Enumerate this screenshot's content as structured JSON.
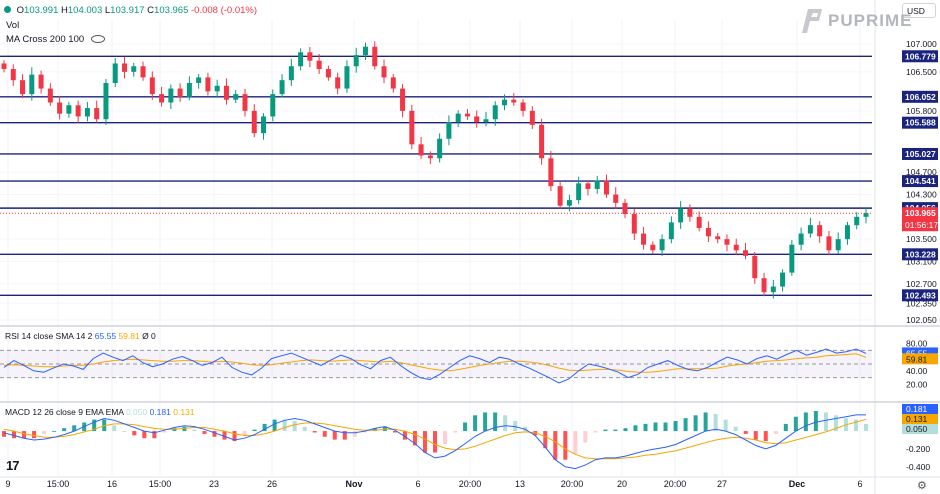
{
  "header": {
    "ohlc": {
      "o_label": "O",
      "o_value": "103.991",
      "h_label": "H",
      "h_value": "104.003",
      "l_label": "L",
      "l_value": "103.917",
      "c_label": "C",
      "c_value": "103.965",
      "change": "-0.008 (-0.01%)"
    },
    "vol_label": "Vol",
    "ma_label": "MA Cross 200 100"
  },
  "currency": "USD",
  "brand": "PUPRIME",
  "watermark": "17",
  "colors": {
    "up": "#089981",
    "down": "#f23645",
    "hline": "#1a237e",
    "rsi": "#2962ff",
    "rsi_ma": "#f7a600",
    "macd": "#2962ff",
    "signal": "#f7a600"
  },
  "chart_data": [
    {
      "type": "candlestick",
      "price_axis_ticks": [
        "107.000",
        "106.500",
        "105.800",
        "104.700",
        "104.300",
        "103.500",
        "103.100",
        "102.700",
        "102.350",
        "102.050"
      ],
      "x_tick_labels": [
        "9",
        "15:00",
        "16",
        "15:00",
        "23",
        "26",
        "Nov",
        "6",
        "20:00",
        "13",
        "20:00",
        "20",
        "20:00",
        "27",
        "Dec",
        "6"
      ],
      "horizontal_levels": [
        "106.779",
        "106.052",
        "105.588",
        "105.027",
        "104.541",
        "104.056",
        "103.228",
        "102.493"
      ],
      "current_price": "103.965",
      "countdown": "01:56:17",
      "last": {
        "open": 103.991,
        "high": 104.003,
        "low": 103.917,
        "close": 103.965
      },
      "close_path": [
        106.55,
        106.35,
        106.1,
        106.45,
        106.2,
        105.95,
        105.75,
        105.9,
        105.7,
        105.85,
        105.65,
        106.3,
        106.65,
        106.5,
        106.6,
        106.4,
        106.1,
        105.95,
        106.2,
        106.05,
        106.3,
        106.4,
        106.15,
        106.25,
        106.0,
        106.1,
        105.8,
        105.4,
        105.7,
        106.1,
        106.35,
        106.6,
        106.85,
        106.7,
        106.55,
        106.4,
        106.2,
        106.6,
        106.8,
        106.95,
        106.6,
        106.4,
        106.2,
        105.8,
        105.2,
        105.0,
        104.95,
        105.3,
        105.6,
        105.75,
        105.7,
        105.6,
        105.65,
        105.9,
        106.0,
        105.95,
        105.8,
        105.55,
        104.95,
        104.45,
        104.1,
        104.2,
        104.5,
        104.4,
        104.55,
        104.3,
        104.15,
        103.95,
        103.6,
        103.4,
        103.3,
        103.5,
        103.8,
        104.05,
        103.9,
        103.7,
        103.55,
        103.5,
        103.4,
        103.3,
        103.2,
        102.8,
        102.55,
        102.65,
        102.9,
        103.4,
        103.6,
        103.75,
        103.55,
        103.3,
        103.5,
        103.75,
        103.9,
        103.965
      ]
    },
    {
      "type": "line",
      "name": "RSI 14 close SMA 14 2",
      "values_text": [
        "65.55",
        "59.81",
        "0"
      ],
      "axis_ticks": [
        "80.00",
        "60.00",
        "40.00",
        "20.00"
      ],
      "ylim": [
        0,
        100
      ],
      "series": [
        {
          "name": "RSI",
          "values": [
            45,
            55,
            48,
            40,
            38,
            44,
            50,
            47,
            42,
            58,
            66,
            60,
            55,
            62,
            52,
            46,
            50,
            57,
            61,
            55,
            48,
            52,
            60,
            45,
            38,
            34,
            44,
            58,
            62,
            66,
            60,
            54,
            48,
            56,
            63,
            58,
            49,
            43,
            55,
            60,
            48,
            38,
            30,
            27,
            35,
            45,
            55,
            62,
            58,
            52,
            60,
            57,
            50,
            44,
            37,
            30,
            22,
            28,
            40,
            50,
            47,
            43,
            38,
            30,
            35,
            45,
            50,
            55,
            48,
            42,
            40,
            45,
            53,
            60,
            56,
            50,
            58,
            62,
            57,
            64,
            70,
            63,
            67,
            72,
            66,
            68,
            72,
            65.55
          ]
        },
        {
          "name": "SMA",
          "values": [
            48,
            49,
            48,
            47,
            46,
            46,
            47,
            48,
            48,
            50,
            53,
            55,
            56,
            57,
            56,
            55,
            54,
            54,
            55,
            55,
            54,
            53,
            54,
            53,
            51,
            49,
            48,
            49,
            51,
            53,
            55,
            56,
            55,
            54,
            55,
            56,
            55,
            54,
            53,
            54,
            52,
            49,
            46,
            43,
            41,
            40,
            42,
            45,
            48,
            50,
            52,
            54,
            54,
            53,
            51,
            48,
            44,
            41,
            40,
            41,
            42,
            42,
            41,
            39,
            38,
            38,
            39,
            41,
            43,
            43,
            43,
            43,
            44,
            47,
            49,
            50,
            52,
            54,
            55,
            56,
            58,
            59,
            60,
            62,
            63,
            64,
            65,
            59.81
          ]
        }
      ]
    },
    {
      "type": "bar+line",
      "name": "MACD 12 26 close 9 EMA EMA",
      "values_text": [
        "0.050",
        "0.181",
        "0.131"
      ],
      "axis_ticks": [
        "0.200",
        "-0.200",
        "-0.400"
      ],
      "axis_labels_right": [
        "0.181",
        "0.131",
        "0.050"
      ],
      "ylim": [
        -0.48,
        0.28
      ],
      "series": [
        {
          "name": "MACD",
          "values": [
            -0.02,
            -0.05,
            -0.08,
            -0.1,
            -0.09,
            -0.07,
            -0.04,
            0.0,
            0.05,
            0.1,
            0.14,
            0.12,
            0.08,
            0.04,
            0.0,
            -0.02,
            0.01,
            0.04,
            0.06,
            0.05,
            0.02,
            -0.02,
            -0.06,
            -0.1,
            -0.08,
            -0.04,
            0.02,
            0.08,
            0.12,
            0.14,
            0.12,
            0.08,
            0.04,
            0.0,
            -0.02,
            -0.02,
            0.0,
            0.03,
            0.05,
            0.01,
            -0.06,
            -0.14,
            -0.24,
            -0.3,
            -0.28,
            -0.22,
            -0.14,
            -0.06,
            0.0,
            0.04,
            0.06,
            0.05,
            0.02,
            -0.05,
            -0.18,
            -0.32,
            -0.4,
            -0.42,
            -0.38,
            -0.32,
            -0.3,
            -0.3,
            -0.28,
            -0.25,
            -0.22,
            -0.2,
            -0.18,
            -0.15,
            -0.1,
            -0.05,
            0.0,
            0.02,
            0.0,
            -0.04,
            -0.1,
            -0.16,
            -0.2,
            -0.16,
            -0.08,
            0.0,
            0.06,
            0.1,
            0.12,
            0.14,
            0.16,
            0.18,
            0.181
          ]
        },
        {
          "name": "Signal",
          "values": [
            0.02,
            0.0,
            -0.03,
            -0.05,
            -0.07,
            -0.07,
            -0.06,
            -0.04,
            -0.01,
            0.02,
            0.06,
            0.08,
            0.08,
            0.07,
            0.05,
            0.03,
            0.02,
            0.02,
            0.03,
            0.04,
            0.04,
            0.02,
            0.0,
            -0.03,
            -0.05,
            -0.05,
            -0.03,
            0.0,
            0.04,
            0.07,
            0.09,
            0.09,
            0.08,
            0.06,
            0.04,
            0.02,
            0.01,
            0.01,
            0.02,
            0.02,
            0.0,
            -0.04,
            -0.09,
            -0.15,
            -0.19,
            -0.21,
            -0.2,
            -0.17,
            -0.13,
            -0.09,
            -0.05,
            -0.02,
            -0.01,
            -0.02,
            -0.06,
            -0.12,
            -0.2,
            -0.26,
            -0.3,
            -0.31,
            -0.31,
            -0.31,
            -0.3,
            -0.29,
            -0.27,
            -0.26,
            -0.24,
            -0.22,
            -0.19,
            -0.16,
            -0.13,
            -0.1,
            -0.08,
            -0.07,
            -0.08,
            -0.1,
            -0.13,
            -0.14,
            -0.13,
            -0.1,
            -0.07,
            -0.04,
            -0.01,
            0.03,
            0.07,
            0.1,
            0.131
          ]
        }
      ]
    }
  ]
}
